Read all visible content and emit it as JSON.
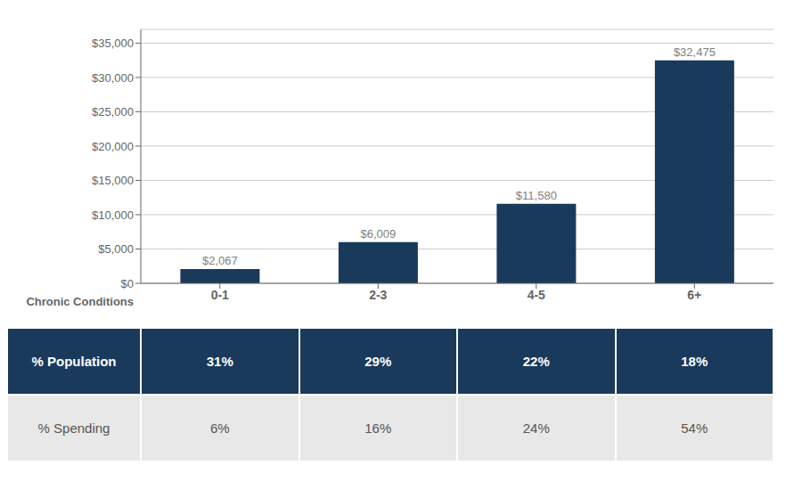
{
  "chart_data": {
    "type": "bar",
    "x_label": "Chronic Conditions",
    "categories": [
      "0-1",
      "2-3",
      "4-5",
      "6+"
    ],
    "values": [
      2067,
      6009,
      11580,
      32475
    ],
    "data_labels": true,
    "value_labels": [
      "$2,067",
      "$6,009",
      "$11,580",
      "$32,475"
    ],
    "color": "#1a3a5c",
    "ylim": [
      0,
      37000
    ],
    "yticks": [
      {
        "value": 0,
        "label": "$0"
      },
      {
        "value": 5000,
        "label": "$5,000"
      },
      {
        "value": 10000,
        "label": "$10,000"
      },
      {
        "value": 15000,
        "label": "$15,000"
      },
      {
        "value": 20000,
        "label": "$20,000"
      },
      {
        "value": 25000,
        "label": "$25,000"
      },
      {
        "value": 30000,
        "label": "$30,000"
      },
      {
        "value": 35000,
        "label": "$35,000"
      }
    ],
    "grid": true,
    "table": [
      {
        "label": "% Population",
        "values": [
          31,
          29,
          22,
          18
        ],
        "value_labels": [
          "31%",
          "29%",
          "22%",
          "18%"
        ],
        "color": "#1a3a5c"
      },
      {
        "label": "% Spending",
        "values": [
          6,
          16,
          24,
          54
        ],
        "value_labels": [
          "6%",
          "16%",
          "24%",
          "54%"
        ],
        "color": "#e8e8e8"
      }
    ]
  }
}
